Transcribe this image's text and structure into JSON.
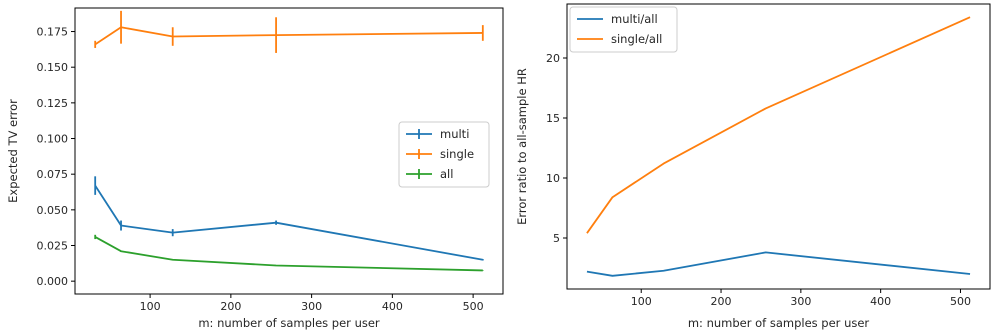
{
  "chart_data": [
    {
      "type": "line",
      "xlabel": "m: number of samples per user",
      "ylabel": "Expected TV error",
      "xlim": [
        7,
        537
      ],
      "ylim": [
        -0.009,
        0.1915
      ],
      "x_ticks": [
        100,
        200,
        300,
        400,
        500
      ],
      "y_ticks": [
        0.0,
        0.025,
        0.05,
        0.075,
        0.1,
        0.125,
        0.15,
        0.175
      ],
      "y_tick_labels": [
        "0.000",
        "0.025",
        "0.050",
        "0.075",
        "0.100",
        "0.125",
        "0.150",
        "0.175"
      ],
      "grid": false,
      "legend_position": "center-right",
      "error_bars": true,
      "series": [
        {
          "name": "multi",
          "color": "#1f77b4",
          "x": [
            32,
            64,
            128,
            256,
            512
          ],
          "y": [
            0.067,
            0.039,
            0.034,
            0.041,
            0.015
          ],
          "err": [
            0.0065,
            0.0035,
            0.0025,
            0.0015,
            0.0005
          ]
        },
        {
          "name": "single",
          "color": "#ff7f0e",
          "x": [
            32,
            64,
            128,
            256,
            512
          ],
          "y": [
            0.166,
            0.178,
            0.1715,
            0.1725,
            0.174
          ],
          "err": [
            0.0025,
            0.0115,
            0.0065,
            0.0125,
            0.0055
          ]
        },
        {
          "name": "all",
          "color": "#2ca02c",
          "x": [
            32,
            64,
            128,
            256,
            512
          ],
          "y": [
            0.031,
            0.021,
            0.015,
            0.011,
            0.0075
          ],
          "err": [
            0.0015,
            0.0005,
            0.0005,
            0.0003,
            0.0002
          ]
        }
      ]
    },
    {
      "type": "line",
      "xlabel": "m: number of samples per user",
      "ylabel": "Error ratio to all-sample HR",
      "xlim": [
        7,
        537
      ],
      "ylim": [
        0.75,
        24.5
      ],
      "x_ticks": [
        100,
        200,
        300,
        400,
        500
      ],
      "y_ticks": [
        5,
        10,
        15,
        20
      ],
      "y_tick_labels": [
        "5",
        "10",
        "15",
        "20"
      ],
      "grid": false,
      "legend_position": "top-left",
      "series": [
        {
          "name": "multi/all",
          "color": "#1f77b4",
          "x": [
            32,
            64,
            128,
            256,
            512
          ],
          "y": [
            2.2,
            1.85,
            2.27,
            3.8,
            2.0
          ]
        },
        {
          "name": "single/all",
          "color": "#ff7f0e",
          "x": [
            32,
            64,
            128,
            256,
            512
          ],
          "y": [
            5.4,
            8.4,
            11.2,
            15.8,
            23.4
          ]
        }
      ]
    }
  ]
}
